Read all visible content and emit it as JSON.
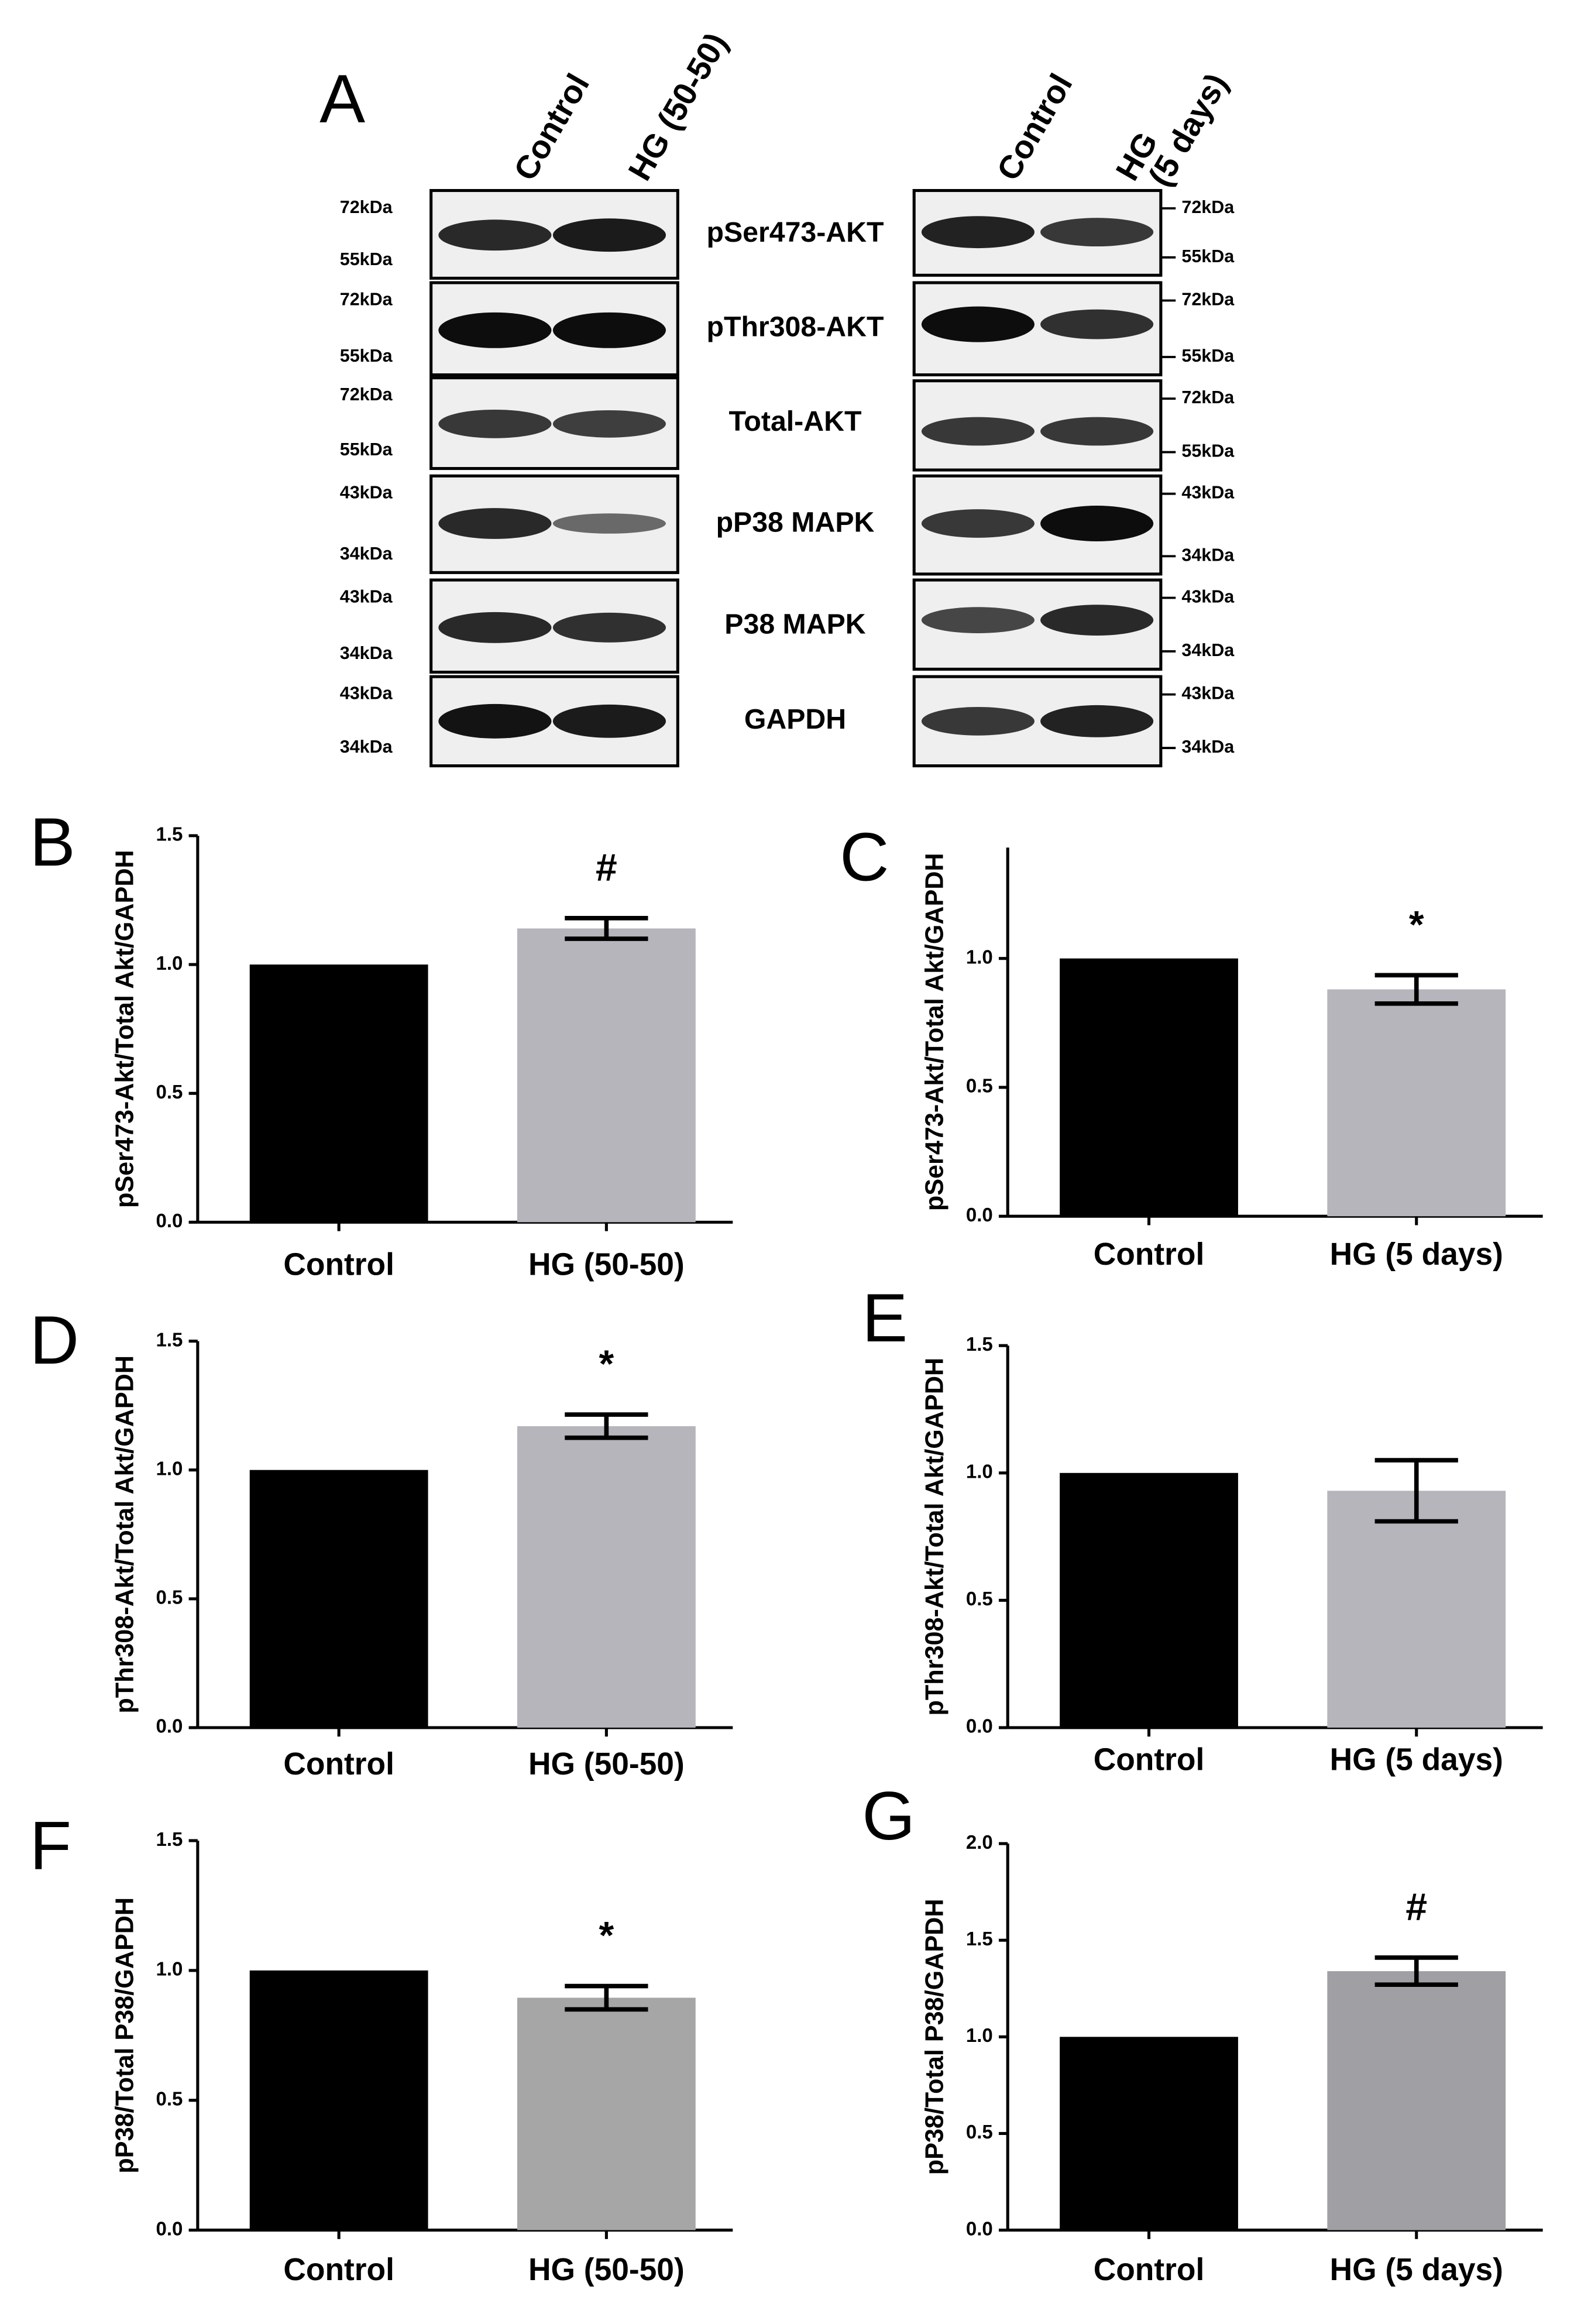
{
  "blots": {
    "label": "A",
    "gels": [
      {
        "lanes": [
          {
            "lines": [
              "Control"
            ]
          },
          {
            "lines": [
              "HG (50-50)"
            ]
          }
        ],
        "proteins": [
          {
            "name": "pSer473-AKT",
            "markers": [
              "72kDa",
              "55kDa"
            ]
          },
          {
            "name": "pThr308-AKT",
            "markers": [
              "72kDa",
              "55kDa"
            ]
          },
          {
            "name": "Total-AKT",
            "markers": [
              "72kDa",
              "55kDa"
            ]
          },
          {
            "name": "pP38 MAPK",
            "markers": [
              "43kDa",
              "34kDa"
            ]
          },
          {
            "name": "P38 MAPK",
            "markers": [
              "43kDa",
              "34kDa"
            ]
          },
          {
            "name": "GAPDH",
            "markers": [
              "43kDa",
              "34kDa"
            ]
          }
        ]
      },
      {
        "lanes": [
          {
            "lines": [
              "Control"
            ]
          },
          {
            "lines": [
              "HG",
              "(5 days)"
            ]
          }
        ],
        "proteins": [
          {
            "markers": [
              "72kDa",
              "55kDa"
            ]
          },
          {
            "markers": [
              "72kDa",
              "55kDa"
            ]
          },
          {
            "markers": [
              "72kDa",
              "55kDa"
            ]
          },
          {
            "markers": [
              "43kDa",
              "34kDa"
            ]
          },
          {
            "markers": [
              "43kDa",
              "34kDa"
            ]
          },
          {
            "markers": [
              "43kDa",
              "34kDa"
            ]
          }
        ]
      }
    ]
  },
  "chart_data": [
    {
      "type": "bar",
      "panel": "B",
      "ylabel": "pSer473-Akt/Total Akt/GAPDH",
      "categories": [
        "Control",
        "HG (50-50)"
      ],
      "values": [
        1.0,
        1.14
      ],
      "errors": [
        null,
        0.04
      ],
      "colors": [
        "#000000",
        "#b5b5bb"
      ],
      "annotation": "#",
      "ylim": [
        0,
        1.5
      ],
      "yticks": [
        {
          "value": 0,
          "label": "0.0"
        },
        0.5,
        {
          "value": 1,
          "label": "1.0"
        },
        1.5
      ]
    },
    {
      "type": "bar",
      "panel": "C",
      "ylabel": "pSer473-Akt/Total Akt/GAPDH",
      "categories": [
        "Control",
        "HG (5 days)"
      ],
      "values": [
        1.0,
        0.88
      ],
      "errors": [
        null,
        0.055
      ],
      "colors": [
        "#000000",
        "#b5b5bb"
      ],
      "annotation": "*",
      "ylim": [
        0,
        1.43
      ],
      "yticks": [
        {
          "value": 0,
          "label": "0.0"
        },
        0.5,
        {
          "value": 1,
          "label": "1.0"
        }
      ]
    },
    {
      "type": "bar",
      "panel": "D",
      "ylabel": "pThr308-Akt/Total Akt/GAPDH",
      "categories": [
        "Control",
        "HG (50-50)"
      ],
      "values": [
        1.0,
        1.17
      ],
      "errors": [
        null,
        0.045
      ],
      "colors": [
        "#000000",
        "#b5b5bb"
      ],
      "annotation": "*",
      "ylim": [
        0,
        1.5
      ],
      "yticks": [
        {
          "value": 0,
          "label": "0.0"
        },
        0.5,
        {
          "value": 1,
          "label": "1.0"
        },
        1.5
      ]
    },
    {
      "type": "bar",
      "panel": "E",
      "ylabel": "pThr308-Akt/Total Akt/GAPDH",
      "categories": [
        "Control",
        "HG (5 days)"
      ],
      "values": [
        1.0,
        0.93
      ],
      "errors": [
        null,
        0.12
      ],
      "colors": [
        "#000000",
        "#b5b5bb"
      ],
      "ylim": [
        0,
        1.5
      ],
      "yticks": [
        {
          "value": 0,
          "label": "0.0"
        },
        0.5,
        {
          "value": 1,
          "label": "1.0"
        },
        1.5
      ]
    },
    {
      "type": "bar",
      "panel": "F",
      "ylabel": "pP38/Total P38/GAPDH",
      "categories": [
        "Control",
        "HG (50-50)"
      ],
      "values": [
        1.0,
        0.895
      ],
      "errors": [
        null,
        0.045
      ],
      "colors": [
        "#000000",
        "#a6a6a6"
      ],
      "annotation": "*",
      "ylim": [
        0,
        1.5
      ],
      "yticks": [
        {
          "value": 0,
          "label": "0.0"
        },
        0.5,
        {
          "value": 1,
          "label": "1.0"
        },
        1.5
      ]
    },
    {
      "type": "bar",
      "panel": "G",
      "ylabel": "pP38/Total P38/GAPDH",
      "categories": [
        "Control",
        "HG (5 days)"
      ],
      "values": [
        1.0,
        1.34
      ],
      "errors": [
        null,
        0.07
      ],
      "colors": [
        "#000000",
        "#a0a0a4"
      ],
      "annotation": "#",
      "ylim": [
        0,
        2
      ],
      "yticks": [
        {
          "value": 0,
          "label": "0.0"
        },
        0.5,
        {
          "value": 1,
          "label": "1.0"
        },
        1.5,
        {
          "value": 2,
          "label": "2.0"
        }
      ]
    }
  ]
}
